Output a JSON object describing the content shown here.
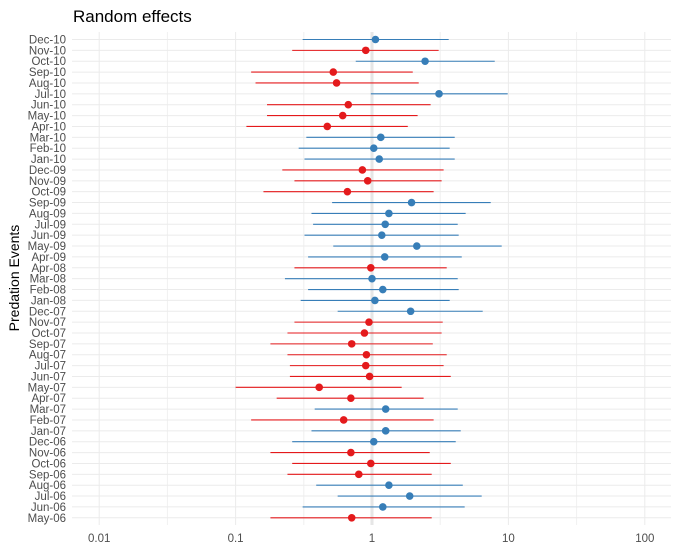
{
  "chart_data": {
    "type": "scatter",
    "subtype": "forest-plot",
    "title": "Random effects",
    "xlabel": "",
    "ylabel": "Predation Events",
    "xscale": "log10",
    "xlim": [
      0.007,
      170
    ],
    "x_ticks": [
      0.01,
      0.1,
      1,
      10,
      100
    ],
    "x_tick_labels": [
      "0.01",
      "0.1",
      "1",
      "10",
      "100"
    ],
    "reference_line": 1,
    "grid": true,
    "legend": "none",
    "colors": {
      "above": "#377EB8",
      "below": "#E41A1C"
    },
    "rows": [
      {
        "label": "Dec-10",
        "est": 1.06,
        "lo": 0.31,
        "hi": 3.65,
        "group": "above"
      },
      {
        "label": "Nov-10",
        "est": 0.9,
        "lo": 0.26,
        "hi": 3.08,
        "group": "below"
      },
      {
        "label": "Oct-10",
        "est": 2.45,
        "lo": 0.76,
        "hi": 7.94,
        "group": "above"
      },
      {
        "label": "Sep-10",
        "est": 0.52,
        "lo": 0.13,
        "hi": 1.99,
        "group": "below"
      },
      {
        "label": "Aug-10",
        "est": 0.55,
        "lo": 0.14,
        "hi": 2.2,
        "group": "below"
      },
      {
        "label": "Jul-10",
        "est": 3.1,
        "lo": 0.98,
        "hi": 9.88,
        "group": "above"
      },
      {
        "label": "Jun-10",
        "est": 0.67,
        "lo": 0.17,
        "hi": 2.69,
        "group": "below"
      },
      {
        "label": "May-10",
        "est": 0.61,
        "lo": 0.17,
        "hi": 2.16,
        "group": "below"
      },
      {
        "label": "Apr-10",
        "est": 0.47,
        "lo": 0.12,
        "hi": 1.83,
        "group": "below"
      },
      {
        "label": "Mar-10",
        "est": 1.16,
        "lo": 0.33,
        "hi": 4.04,
        "group": "above"
      },
      {
        "label": "Feb-10",
        "est": 1.03,
        "lo": 0.29,
        "hi": 3.71,
        "group": "above"
      },
      {
        "label": "Jan-10",
        "est": 1.13,
        "lo": 0.32,
        "hi": 4.04,
        "group": "above"
      },
      {
        "label": "Dec-09",
        "est": 0.85,
        "lo": 0.22,
        "hi": 3.35,
        "group": "below"
      },
      {
        "label": "Nov-09",
        "est": 0.93,
        "lo": 0.27,
        "hi": 3.24,
        "group": "below"
      },
      {
        "label": "Oct-09",
        "est": 0.66,
        "lo": 0.16,
        "hi": 2.83,
        "group": "below"
      },
      {
        "label": "Sep-09",
        "est": 1.95,
        "lo": 0.51,
        "hi": 7.42,
        "group": "above"
      },
      {
        "label": "Aug-09",
        "est": 1.33,
        "lo": 0.36,
        "hi": 4.86,
        "group": "above"
      },
      {
        "label": "Jul-09",
        "est": 1.25,
        "lo": 0.37,
        "hi": 4.25,
        "group": "above"
      },
      {
        "label": "Jun-09",
        "est": 1.18,
        "lo": 0.32,
        "hi": 4.32,
        "group": "above"
      },
      {
        "label": "May-09",
        "est": 2.13,
        "lo": 0.52,
        "hi": 8.93,
        "group": "above"
      },
      {
        "label": "Apr-09",
        "est": 1.24,
        "lo": 0.34,
        "hi": 4.55,
        "group": "above"
      },
      {
        "label": "Apr-08",
        "est": 0.98,
        "lo": 0.27,
        "hi": 3.53,
        "group": "below"
      },
      {
        "label": "Mar-08",
        "est": 1.0,
        "lo": 0.23,
        "hi": 4.25,
        "group": "above"
      },
      {
        "label": "Feb-08",
        "est": 1.2,
        "lo": 0.34,
        "hi": 4.32,
        "group": "above"
      },
      {
        "label": "Jan-08",
        "est": 1.05,
        "lo": 0.3,
        "hi": 3.71,
        "group": "above"
      },
      {
        "label": "Dec-07",
        "est": 1.92,
        "lo": 0.56,
        "hi": 6.48,
        "group": "above"
      },
      {
        "label": "Nov-07",
        "est": 0.95,
        "lo": 0.27,
        "hi": 3.3,
        "group": "below"
      },
      {
        "label": "Oct-07",
        "est": 0.88,
        "lo": 0.24,
        "hi": 3.24,
        "group": "below"
      },
      {
        "label": "Sep-07",
        "est": 0.71,
        "lo": 0.18,
        "hi": 2.79,
        "group": "below"
      },
      {
        "label": "Aug-07",
        "est": 0.91,
        "lo": 0.24,
        "hi": 3.53,
        "group": "below"
      },
      {
        "label": "Jul-07",
        "est": 0.9,
        "lo": 0.25,
        "hi": 3.35,
        "group": "below"
      },
      {
        "label": "Jun-07",
        "est": 0.96,
        "lo": 0.25,
        "hi": 3.78,
        "group": "below"
      },
      {
        "label": "May-07",
        "est": 0.41,
        "lo": 0.1,
        "hi": 1.65,
        "group": "below"
      },
      {
        "label": "Apr-07",
        "est": 0.7,
        "lo": 0.2,
        "hi": 2.39,
        "group": "below"
      },
      {
        "label": "Mar-07",
        "est": 1.26,
        "lo": 0.38,
        "hi": 4.25,
        "group": "above"
      },
      {
        "label": "Feb-07",
        "est": 0.62,
        "lo": 0.13,
        "hi": 2.83,
        "group": "below"
      },
      {
        "label": "Jan-07",
        "est": 1.26,
        "lo": 0.36,
        "hi": 4.47,
        "group": "above"
      },
      {
        "label": "Dec-06",
        "est": 1.03,
        "lo": 0.26,
        "hi": 4.11,
        "group": "above"
      },
      {
        "label": "Nov-06",
        "est": 0.7,
        "lo": 0.18,
        "hi": 2.65,
        "group": "below"
      },
      {
        "label": "Oct-06",
        "est": 0.98,
        "lo": 0.26,
        "hi": 3.78,
        "group": "below"
      },
      {
        "label": "Sep-06",
        "est": 0.8,
        "lo": 0.24,
        "hi": 2.74,
        "group": "below"
      },
      {
        "label": "Aug-06",
        "est": 1.33,
        "lo": 0.39,
        "hi": 4.63,
        "group": "above"
      },
      {
        "label": "Jul-06",
        "est": 1.89,
        "lo": 0.56,
        "hi": 6.37,
        "group": "above"
      },
      {
        "label": "Jun-06",
        "est": 1.2,
        "lo": 0.31,
        "hi": 4.78,
        "group": "above"
      },
      {
        "label": "May-06",
        "est": 0.71,
        "lo": 0.18,
        "hi": 2.74,
        "group": "below"
      }
    ]
  }
}
